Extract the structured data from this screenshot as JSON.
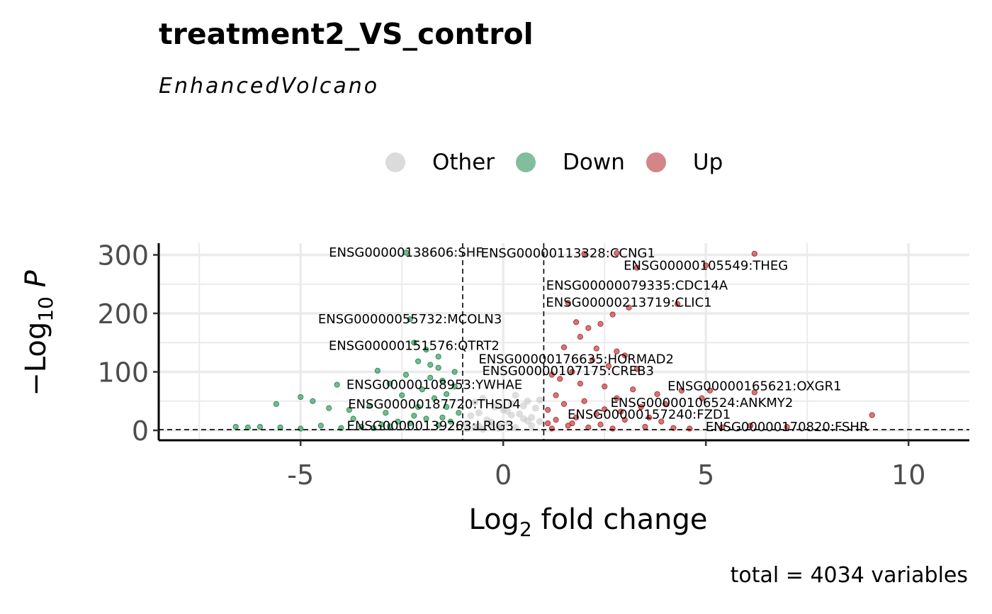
{
  "title": "treatment2_VS_control",
  "subtitle": "EnhancedVolcano",
  "caption": "total = 4034 variables",
  "colors": {
    "other": "#bdbdbd",
    "down": "#1e8a4c",
    "up": "#b22222",
    "grid": "#ebebeb",
    "axis": "#000000"
  },
  "legend": [
    {
      "key": "other",
      "label": "Other"
    },
    {
      "key": "down",
      "label": "Down"
    },
    {
      "key": "up",
      "label": "Up"
    }
  ],
  "chart_data": {
    "type": "scatter",
    "title": "treatment2_VS_control",
    "subtitle": "EnhancedVolcano",
    "xlabel": "Log2 fold change",
    "ylabel": "−Log10 P",
    "xlim": [
      -8.5,
      11.5
    ],
    "ylim": [
      -17,
      320
    ],
    "x_ticks": [
      -5,
      0,
      5,
      10
    ],
    "x_tick_labels": [
      "-5",
      "0",
      "5",
      "10"
    ],
    "y_ticks": [
      0,
      100,
      200,
      300
    ],
    "y_tick_labels": [
      "0",
      "100",
      "200",
      "300"
    ],
    "grid": true,
    "legend_position": "top",
    "fc_cutoff_lines": [
      -1,
      1
    ],
    "p_cutoff_line": 1.3,
    "series": [
      {
        "name": "Other",
        "color_key": "other",
        "points": [
          [
            -0.9,
            3
          ],
          [
            -0.7,
            6
          ],
          [
            -0.5,
            2
          ],
          [
            -0.3,
            9
          ],
          [
            -0.1,
            4
          ],
          [
            0.1,
            12
          ],
          [
            0.3,
            5
          ],
          [
            0.5,
            20
          ],
          [
            0.7,
            8
          ],
          [
            0.9,
            15
          ],
          [
            -0.8,
            25
          ],
          [
            -0.6,
            30
          ],
          [
            -0.4,
            18
          ],
          [
            -0.2,
            40
          ],
          [
            0.0,
            35
          ],
          [
            0.2,
            45
          ],
          [
            0.4,
            28
          ],
          [
            0.6,
            50
          ],
          [
            0.8,
            38
          ],
          [
            -0.9,
            12
          ],
          [
            -0.5,
            55
          ],
          [
            0.3,
            60
          ],
          [
            0.7,
            22
          ],
          [
            -0.3,
            14
          ],
          [
            0.1,
            33
          ],
          [
            0.5,
            42
          ],
          [
            -0.7,
            48
          ],
          [
            0.9,
            52
          ],
          [
            -0.1,
            8
          ],
          [
            0.6,
            16
          ],
          [
            -0.6,
            7
          ],
          [
            0.2,
            26
          ]
        ]
      },
      {
        "name": "Down",
        "color_key": "down",
        "points": [
          [
            -2.4,
            304
          ],
          [
            -2.3,
            190
          ],
          [
            -2.2,
            150
          ],
          [
            -1.9,
            138
          ],
          [
            -1.6,
            126
          ],
          [
            -1.6,
            107
          ],
          [
            -1.8,
            112
          ],
          [
            -2.1,
            118
          ],
          [
            -3.1,
            102
          ],
          [
            -2.8,
            80
          ],
          [
            -4.1,
            78
          ],
          [
            -5.0,
            57
          ],
          [
            -5.6,
            45
          ],
          [
            -4.7,
            50
          ],
          [
            -4.3,
            38
          ],
          [
            -3.8,
            35
          ],
          [
            -3.3,
            42
          ],
          [
            -2.9,
            30
          ],
          [
            -2.5,
            60
          ],
          [
            -2.0,
            70
          ],
          [
            -1.5,
            85
          ],
          [
            -1.2,
            75
          ],
          [
            -1.4,
            40
          ],
          [
            -1.7,
            55
          ],
          [
            -2.2,
            25
          ],
          [
            -2.6,
            15
          ],
          [
            -3.0,
            10
          ],
          [
            -3.5,
            6
          ],
          [
            -4.0,
            4
          ],
          [
            -4.5,
            8
          ],
          [
            -5.0,
            3
          ],
          [
            -5.5,
            5
          ],
          [
            -6.0,
            6
          ],
          [
            -6.3,
            5
          ],
          [
            -6.6,
            6
          ],
          [
            -3.7,
            20
          ],
          [
            -3.2,
            4
          ],
          [
            -2.8,
            7
          ],
          [
            -2.3,
            12
          ],
          [
            -1.9,
            20
          ],
          [
            -1.3,
            15
          ],
          [
            -1.1,
            30
          ],
          [
            -1.6,
            9
          ],
          [
            -2.1,
            40
          ],
          [
            -1.4,
            62
          ],
          [
            -1.8,
            90
          ],
          [
            -2.4,
            95
          ],
          [
            -1.2,
            100
          ],
          [
            -1.5,
            22
          ]
        ]
      },
      {
        "name": "Up",
        "color_key": "up",
        "points": [
          [
            6.2,
            302
          ],
          [
            5.0,
            282
          ],
          [
            3.3,
            278
          ],
          [
            1.6,
            218
          ],
          [
            2.0,
            302
          ],
          [
            2.8,
            303
          ],
          [
            4.3,
            216
          ],
          [
            3.1,
            210
          ],
          [
            2.7,
            198
          ],
          [
            2.4,
            182
          ],
          [
            2.1,
            175
          ],
          [
            1.8,
            185
          ],
          [
            1.9,
            160
          ],
          [
            2.3,
            140
          ],
          [
            2.8,
            135
          ],
          [
            3.0,
            128
          ],
          [
            1.5,
            142
          ],
          [
            2.2,
            120
          ],
          [
            2.6,
            110
          ],
          [
            3.3,
            105
          ],
          [
            1.7,
            100
          ],
          [
            1.2,
            95
          ],
          [
            1.4,
            88
          ],
          [
            1.9,
            80
          ],
          [
            2.5,
            75
          ],
          [
            3.2,
            70
          ],
          [
            3.8,
            62
          ],
          [
            4.4,
            68
          ],
          [
            5.1,
            68
          ],
          [
            6.2,
            65
          ],
          [
            4.9,
            55
          ],
          [
            4.0,
            45
          ],
          [
            3.4,
            40
          ],
          [
            2.9,
            32
          ],
          [
            2.3,
            28
          ],
          [
            1.8,
            22
          ],
          [
            1.3,
            18
          ],
          [
            1.1,
            12
          ],
          [
            1.6,
            8
          ],
          [
            2.1,
            5
          ],
          [
            2.7,
            3
          ],
          [
            3.5,
            6
          ],
          [
            4.2,
            4
          ],
          [
            4.6,
            3
          ],
          [
            5.4,
            5
          ],
          [
            6.1,
            8
          ],
          [
            7.0,
            6
          ],
          [
            9.1,
            26
          ],
          [
            3.9,
            15
          ],
          [
            2.0,
            50
          ],
          [
            1.3,
            60
          ],
          [
            1.5,
            45
          ],
          [
            2.5,
            36
          ],
          [
            3.0,
            18
          ],
          [
            1.1,
            35
          ],
          [
            2.8,
            55
          ],
          [
            1.7,
            12
          ],
          [
            2.4,
            10
          ],
          [
            3.6,
            22
          ],
          [
            1.2,
            3
          ]
        ]
      }
    ],
    "labels": [
      {
        "text": "ENSG00000138606:SHF",
        "x": -2.4,
        "y": 304
      },
      {
        "text": "ENSG00000113328:CCNG1",
        "x": 1.6,
        "y": 303
      },
      {
        "text": "ENSG00000105549:THEG",
        "x": 5.0,
        "y": 282
      },
      {
        "text": "ENSG00000079335:CDC14A",
        "x": 3.3,
        "y": 248
      },
      {
        "text": "ENSG00000213719:CLIC1",
        "x": 3.1,
        "y": 219
      },
      {
        "text": "ENSG00000055732:MCOLN3",
        "x": -2.3,
        "y": 190
      },
      {
        "text": "ENSG00000151576:QTRT2",
        "x": -2.2,
        "y": 145
      },
      {
        "text": "ENSG00000176635:HORMAD2",
        "x": 1.8,
        "y": 122
      },
      {
        "text": "ENSG00000107175:CREB3",
        "x": 1.6,
        "y": 102
      },
      {
        "text": "ENSG00000108953:YWHAE",
        "x": -1.7,
        "y": 78
      },
      {
        "text": "ENSG00000165621:OXGR1",
        "x": 6.2,
        "y": 76
      },
      {
        "text": "ENSG00000106524:ANKMY2",
        "x": 4.9,
        "y": 47
      },
      {
        "text": "ENSG00000187720:THSD4",
        "x": -1.7,
        "y": 45
      },
      {
        "text": "ENSG00000157240:FZD1",
        "x": 3.6,
        "y": 27
      },
      {
        "text": "ENSG00000139263:LRIG3",
        "x": -1.8,
        "y": 8
      },
      {
        "text": "ENSG00000170820:FSHR",
        "x": 7.0,
        "y": 6
      }
    ]
  }
}
